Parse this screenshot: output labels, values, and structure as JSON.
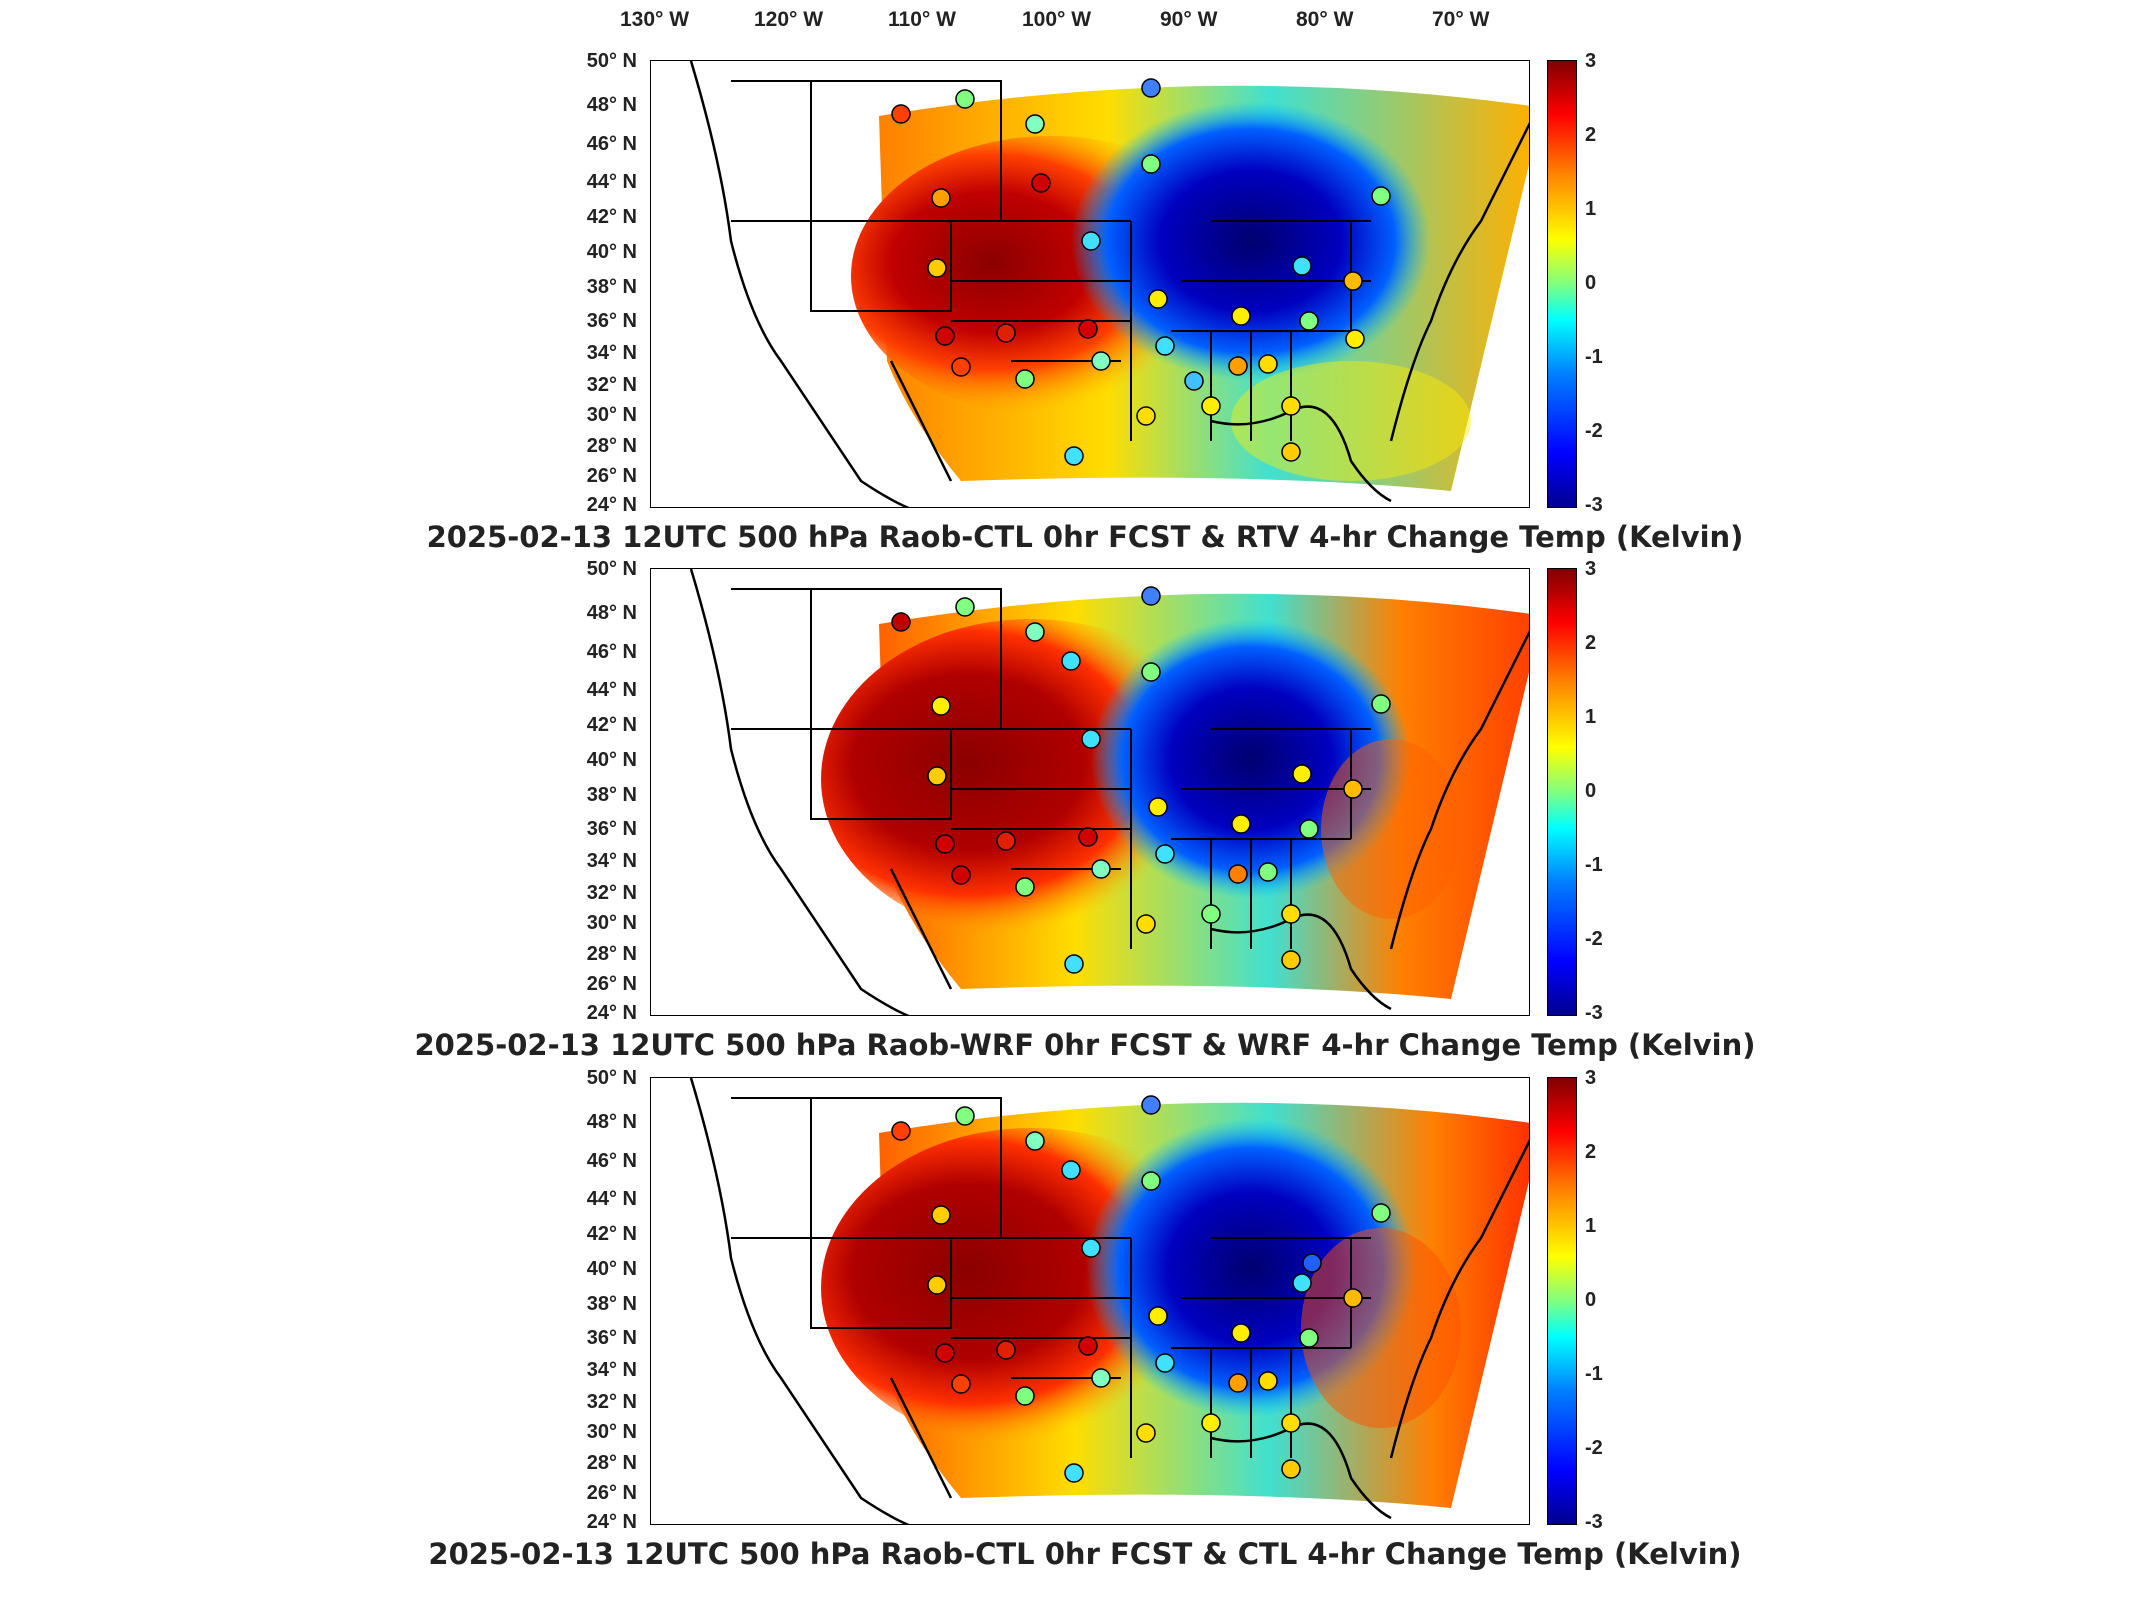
{
  "lon_labels": [
    "130° W",
    "120° W",
    "110° W",
    "100° W",
    "90° W",
    "80° W",
    "70° W"
  ],
  "lat_labels": [
    "50° N",
    "48° N",
    "46° N",
    "44° N",
    "42° N",
    "40° N",
    "38° N",
    "36° N",
    "34° N",
    "32° N",
    "30° N",
    "28° N",
    "26° N",
    "24° N"
  ],
  "colorbar_ticks": [
    "3",
    "2",
    "1",
    "0",
    "-1",
    "-2",
    "-3"
  ],
  "colorbar_colors": [
    "#00008f",
    "#0000ff",
    "#0080ff",
    "#00ffff",
    "#80ff80",
    "#ffff00",
    "#ff8000",
    "#ff0000",
    "#800000"
  ],
  "panels": [
    {
      "title": "2025-02-13 12UTC 500 hPa Raob-CTL 0hr FCST & RTV 4-hr Change Temp (Kelvin)"
    },
    {
      "title": "2025-02-13 12UTC 500 hPa Raob-WRF 0hr FCST & WRF 4-hr Change Temp (Kelvin)"
    },
    {
      "title": "2025-02-13 12UTC 500 hPa Raob-CTL 0hr FCST & CTL 4-hr Change Temp (Kelvin)"
    }
  ]
}
